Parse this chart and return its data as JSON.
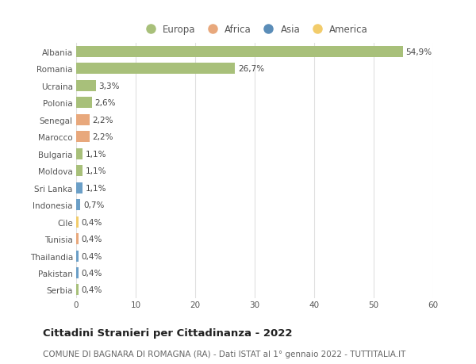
{
  "categories": [
    "Albania",
    "Romania",
    "Ucraina",
    "Polonia",
    "Senegal",
    "Marocco",
    "Bulgaria",
    "Moldova",
    "Sri Lanka",
    "Indonesia",
    "Cile",
    "Tunisia",
    "Thailandia",
    "Pakistan",
    "Serbia"
  ],
  "values": [
    54.9,
    26.7,
    3.3,
    2.6,
    2.2,
    2.2,
    1.1,
    1.1,
    1.1,
    0.7,
    0.4,
    0.4,
    0.4,
    0.4,
    0.4
  ],
  "labels": [
    "54,9%",
    "26,7%",
    "3,3%",
    "2,6%",
    "2,2%",
    "2,2%",
    "1,1%",
    "1,1%",
    "1,1%",
    "0,7%",
    "0,4%",
    "0,4%",
    "0,4%",
    "0,4%",
    "0,4%"
  ],
  "bar_colors": [
    "#a8c07a",
    "#a8c07a",
    "#a8c07a",
    "#a8c07a",
    "#e8a87c",
    "#e8a87c",
    "#a8c07a",
    "#a8c07a",
    "#6b9fc7",
    "#6b9fc7",
    "#f2cc6b",
    "#e8a87c",
    "#6b9fc7",
    "#6b9fc7",
    "#a8c07a"
  ],
  "legend": {
    "Europa": "#a8c07a",
    "Africa": "#e8a87c",
    "Asia": "#5b8db8",
    "America": "#f2cc6b"
  },
  "xlim": [
    0,
    60
  ],
  "xticks": [
    0,
    10,
    20,
    30,
    40,
    50,
    60
  ],
  "title": "Cittadini Stranieri per Cittadinanza - 2022",
  "subtitle": "COMUNE DI BAGNARA DI ROMAGNA (RA) - Dati ISTAT al 1° gennaio 2022 - TUTTITALIA.IT",
  "background_color": "#ffffff",
  "grid_color": "#e0e0e0",
  "bar_height": 0.65,
  "label_fontsize": 7.5,
  "title_fontsize": 9.5,
  "subtitle_fontsize": 7.5,
  "tick_fontsize": 7.5,
  "legend_fontsize": 8.5
}
